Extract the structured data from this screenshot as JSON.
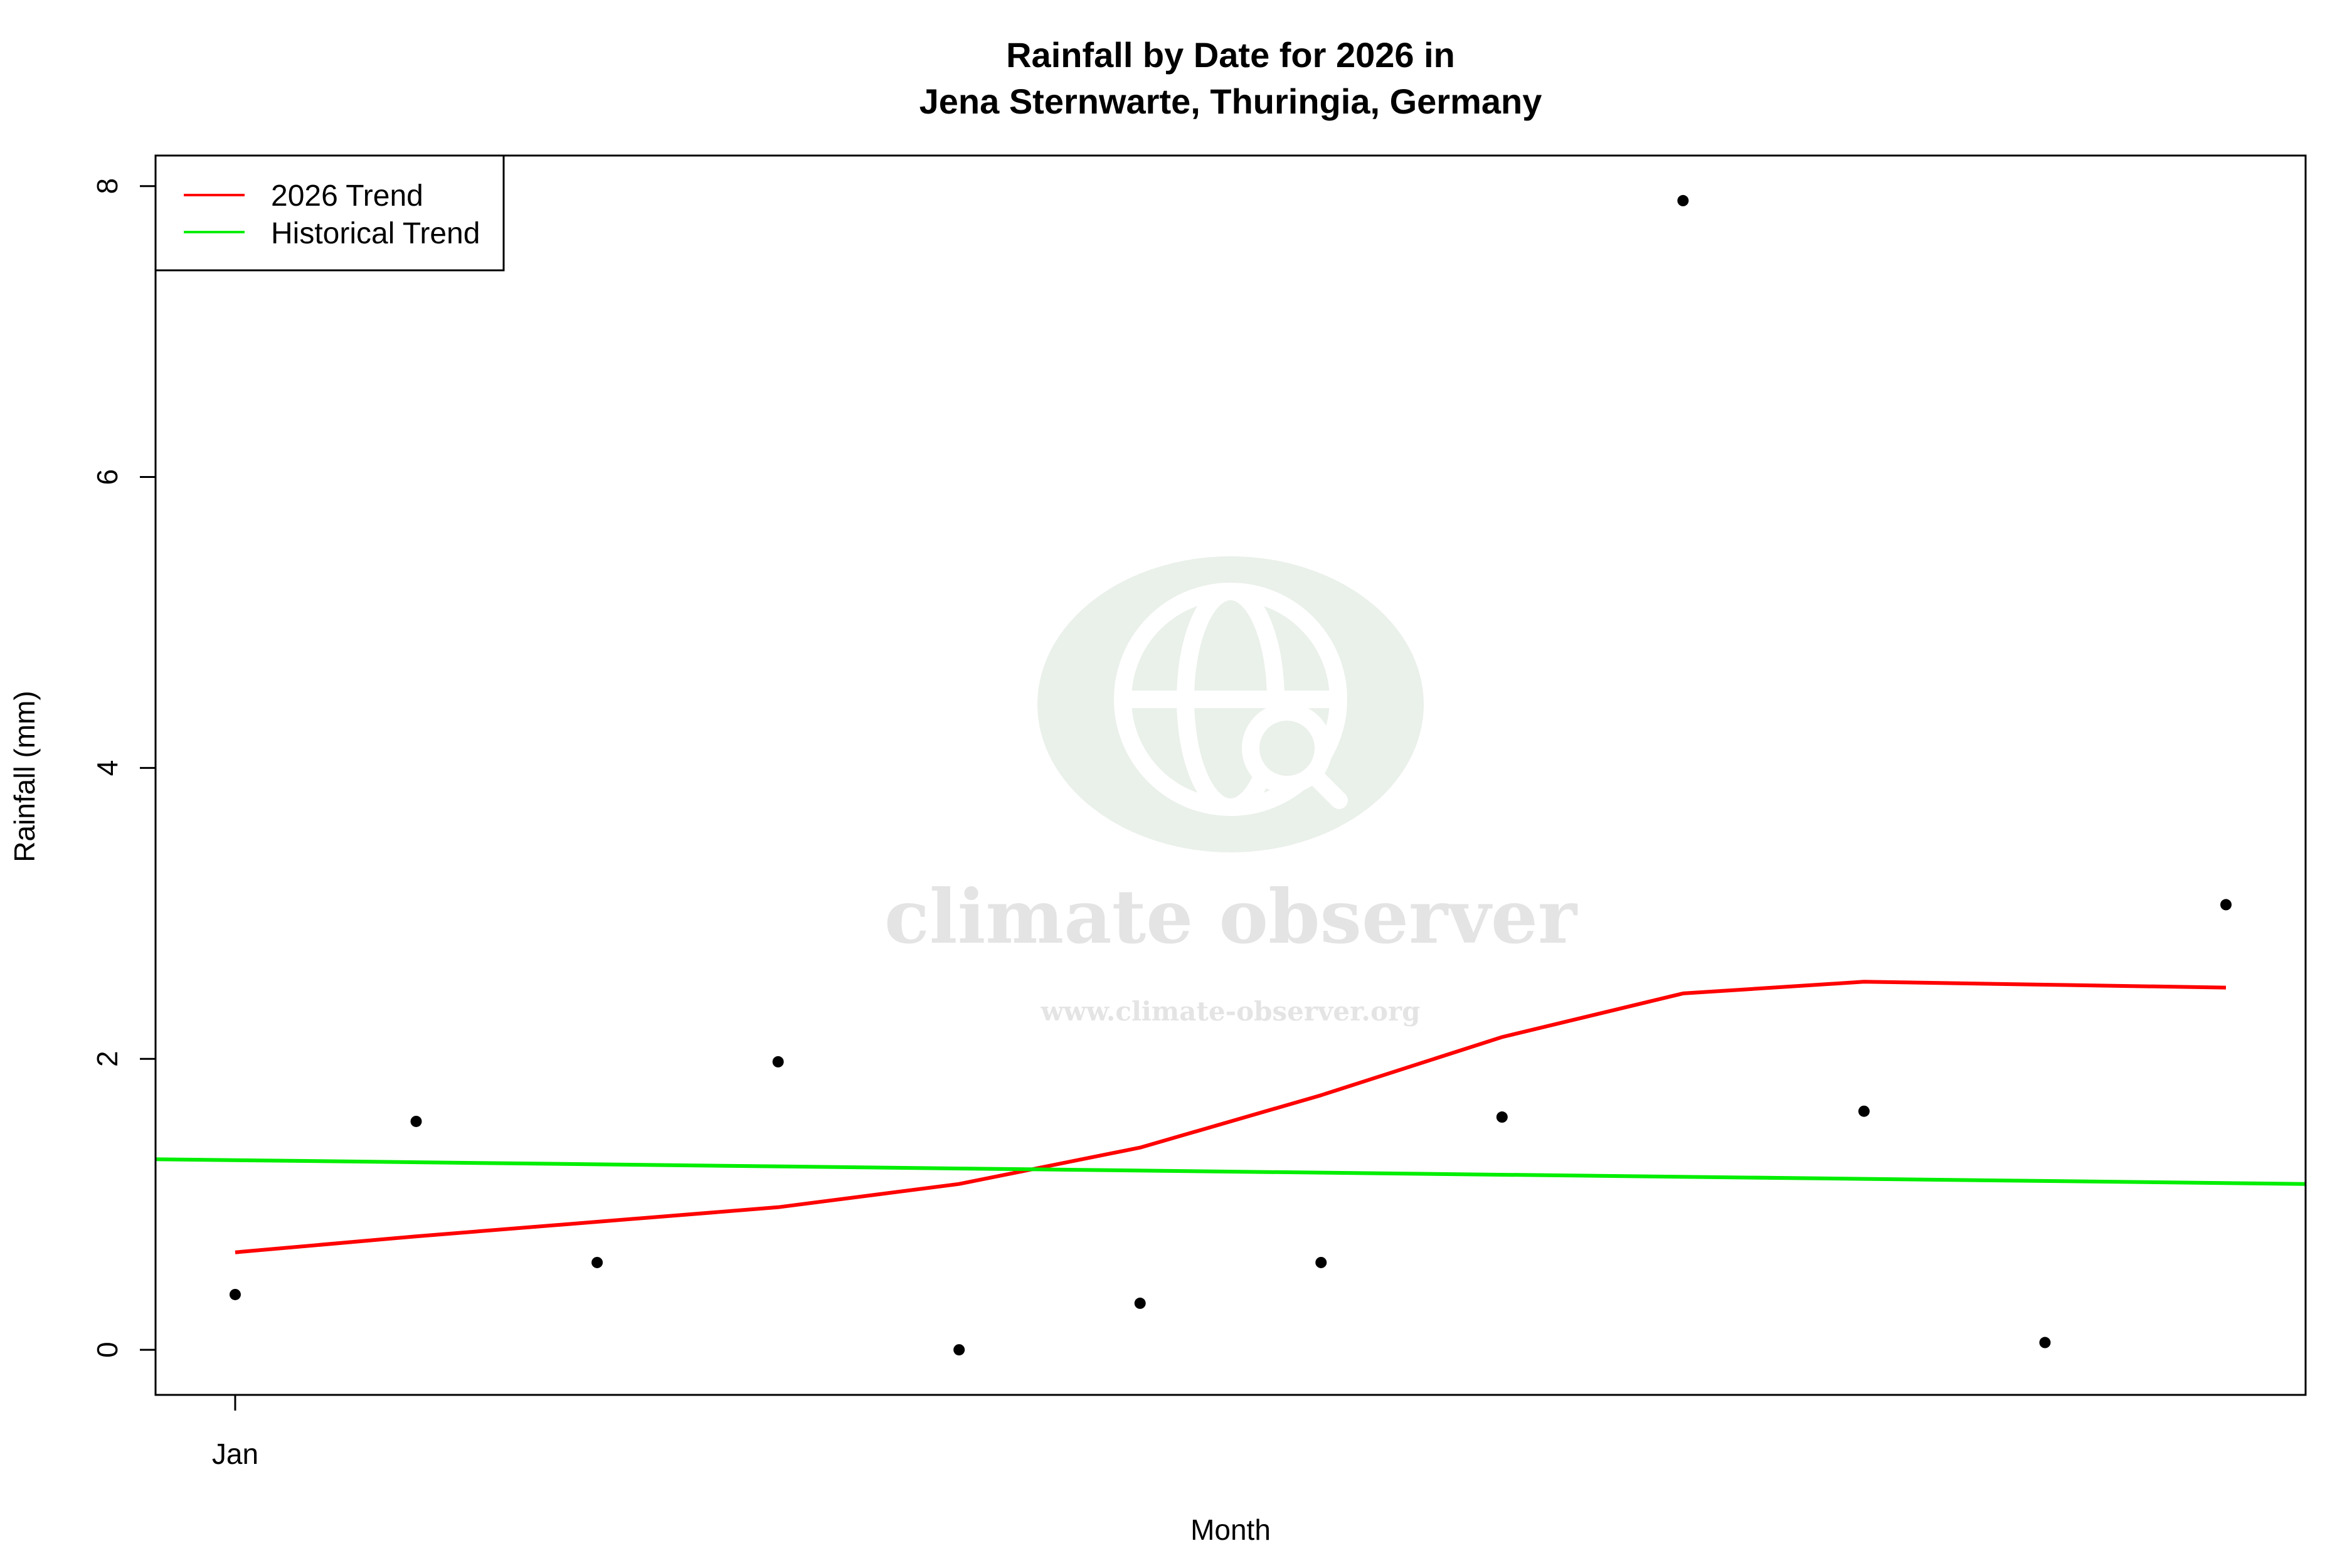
{
  "chart_data": {
    "type": "scatter",
    "title": "Rainfall by Date for 2026 in",
    "subtitle": "Jena Sternwarte, Thuringia, Germany",
    "xlabel": "Month",
    "ylabel": "Rainfall (mm)",
    "x_ticks": [
      {
        "x": 1,
        "label": "Jan"
      }
    ],
    "y_ticks": [
      0,
      2,
      4,
      6,
      8
    ],
    "xlim": [
      0.56,
      12.44
    ],
    "ylim": [
      -0.31,
      8.21
    ],
    "grid": false,
    "legend_position": "top-left",
    "points": {
      "x": [
        1,
        2,
        3,
        4,
        5,
        6,
        7,
        8,
        9,
        10,
        11,
        12
      ],
      "y": [
        0.38,
        1.57,
        0.6,
        1.98,
        0.0,
        0.32,
        0.6,
        1.6,
        7.9,
        1.64,
        0.05,
        3.06
      ]
    },
    "series": [
      {
        "name": "2026 Trend",
        "color": "#ff0000",
        "x": [
          1,
          2,
          3,
          4,
          5,
          6,
          7,
          8,
          9,
          10,
          11,
          12
        ],
        "y": [
          0.67,
          0.78,
          0.88,
          0.98,
          1.14,
          1.39,
          1.75,
          2.15,
          2.45,
          2.53,
          2.51,
          2.49
        ]
      },
      {
        "name": "Historical Trend",
        "color": "#00ee00",
        "x": [
          0.56,
          12.44
        ],
        "y": [
          1.31,
          1.14
        ]
      }
    ]
  },
  "watermark": {
    "brand": "climate observer",
    "url": "www.climate-observer.org",
    "icon": "globe-search-icon"
  }
}
